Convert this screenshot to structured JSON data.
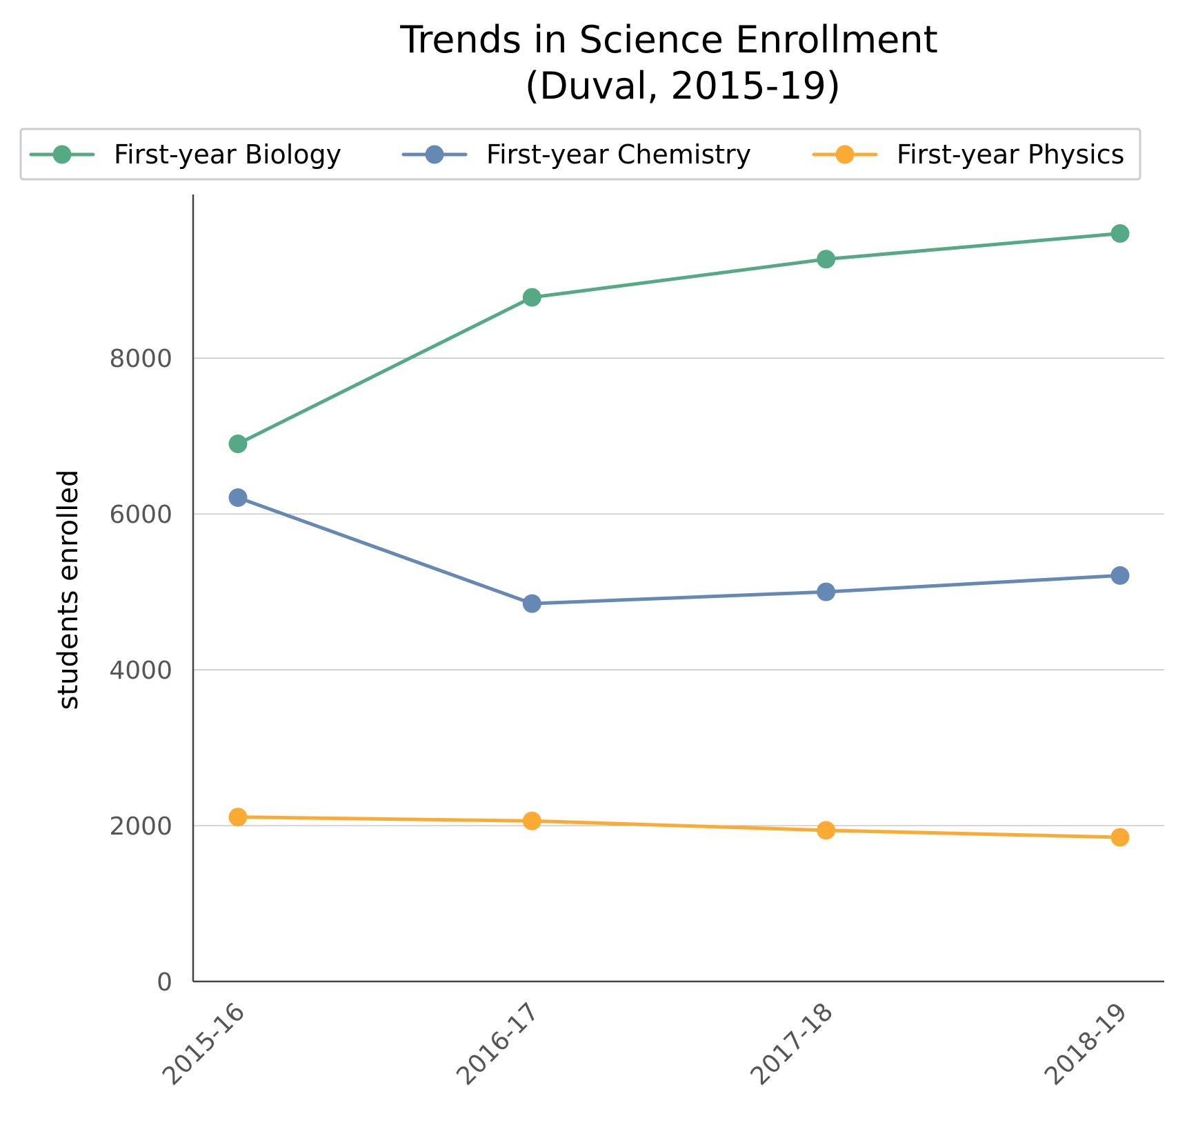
{
  "chart_data": {
    "type": "line",
    "title": "Trends in Science Enrollment",
    "subtitle": "(Duval, 2015-19)",
    "xlabel": "",
    "ylabel": "students enrolled",
    "categories": [
      "2015-16",
      "2016-17",
      "2017-18",
      "2018-19"
    ],
    "yticks": [
      0,
      2000,
      4000,
      6000,
      8000
    ],
    "ylim": [
      0,
      10100
    ],
    "grid": true,
    "legend_position": "top",
    "series": [
      {
        "name": "First-year Biology",
        "color": "#55aa85",
        "values": [
          6900,
          8780,
          9270,
          9600
        ]
      },
      {
        "name": "First-year Chemistry",
        "color": "#6688b4",
        "values": [
          6210,
          4850,
          5000,
          5210
        ]
      },
      {
        "name": "First-year Physics",
        "color": "#fbaa33",
        "values": [
          2110,
          2060,
          1940,
          1850
        ]
      }
    ]
  }
}
